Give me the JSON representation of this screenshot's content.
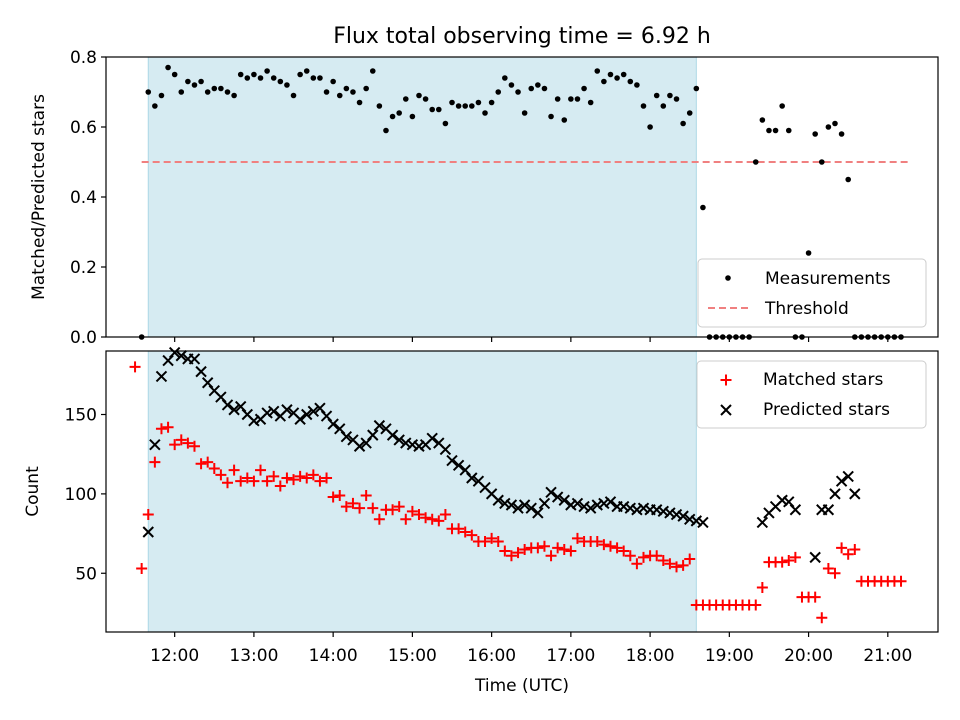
{
  "title": "Flux total observing time = 6.92 h",
  "chart_data": [
    {
      "type": "scatter",
      "ylabel": "Matched/Predicted stars",
      "xlabel": "",
      "xlim": [
        "11:08",
        "21:38"
      ],
      "ylim": [
        0,
        0.8
      ],
      "yticks": [
        "0.0",
        "0.2",
        "0.4",
        "0.6",
        "0.8"
      ],
      "grid": false,
      "legend_position": "bottom-right",
      "shaded_span": [
        "11:40",
        "18:35"
      ],
      "threshold": {
        "name": "Threshold",
        "value": 0.5,
        "x_range": [
          "11:35",
          "21:15"
        ],
        "color": "#f08080"
      },
      "series": [
        {
          "name": "Measurements",
          "color": "#000000",
          "x": [
            "11:35",
            "11:40",
            "11:45",
            "11:50",
            "11:55",
            "12:00",
            "12:05",
            "12:10",
            "12:15",
            "12:20",
            "12:25",
            "12:30",
            "12:35",
            "12:40",
            "12:45",
            "12:50",
            "12:55",
            "13:00",
            "13:05",
            "13:10",
            "13:15",
            "13:20",
            "13:25",
            "13:30",
            "13:35",
            "13:40",
            "13:45",
            "13:50",
            "13:55",
            "14:00",
            "14:05",
            "14:10",
            "14:15",
            "14:20",
            "14:25",
            "14:30",
            "14:35",
            "14:40",
            "14:45",
            "14:50",
            "14:55",
            "15:00",
            "15:05",
            "15:10",
            "15:15",
            "15:20",
            "15:25",
            "15:30",
            "15:35",
            "15:40",
            "15:45",
            "15:50",
            "15:55",
            "16:00",
            "16:05",
            "16:10",
            "16:15",
            "16:20",
            "16:25",
            "16:30",
            "16:35",
            "16:40",
            "16:45",
            "16:50",
            "16:55",
            "17:00",
            "17:05",
            "17:10",
            "17:15",
            "17:20",
            "17:25",
            "17:30",
            "17:35",
            "17:40",
            "17:45",
            "17:50",
            "17:55",
            "18:00",
            "18:05",
            "18:10",
            "18:15",
            "18:20",
            "18:25",
            "18:30",
            "18:35",
            "18:40",
            "18:45",
            "18:50",
            "18:55",
            "19:00",
            "19:05",
            "19:10",
            "19:15",
            "19:20",
            "19:25",
            "19:30",
            "19:35",
            "19:40",
            "19:45",
            "19:50",
            "19:55",
            "20:00",
            "20:05",
            "20:10",
            "20:15",
            "20:20",
            "20:25",
            "20:30",
            "20:35",
            "20:40",
            "20:45",
            "20:50",
            "20:55",
            "21:00",
            "21:05",
            "21:10"
          ],
          "y": [
            0.0,
            0.7,
            0.66,
            0.69,
            0.77,
            0.75,
            0.7,
            0.73,
            0.72,
            0.73,
            0.7,
            0.71,
            0.71,
            0.7,
            0.69,
            0.75,
            0.74,
            0.75,
            0.74,
            0.76,
            0.74,
            0.73,
            0.72,
            0.69,
            0.75,
            0.76,
            0.74,
            0.74,
            0.7,
            0.73,
            0.69,
            0.71,
            0.7,
            0.67,
            0.71,
            0.76,
            0.66,
            0.59,
            0.63,
            0.64,
            0.68,
            0.63,
            0.69,
            0.68,
            0.65,
            0.65,
            0.61,
            0.67,
            0.66,
            0.66,
            0.66,
            0.67,
            0.64,
            0.67,
            0.7,
            0.74,
            0.72,
            0.7,
            0.64,
            0.71,
            0.72,
            0.71,
            0.63,
            0.68,
            0.62,
            0.68,
            0.68,
            0.71,
            0.67,
            0.76,
            0.73,
            0.75,
            0.74,
            0.75,
            0.73,
            0.72,
            0.66,
            0.6,
            0.69,
            0.66,
            0.69,
            0.68,
            0.61,
            0.64,
            0.71,
            0.37,
            0.0,
            0.0,
            0.0,
            0.0,
            0.0,
            0.0,
            0.0,
            0.5,
            0.62,
            0.59,
            0.59,
            0.66,
            0.59,
            0.0,
            0.0,
            0.24,
            0.58,
            0.5,
            0.6,
            0.61,
            0.58,
            0.45,
            0.0,
            0.0,
            0.0,
            0.0,
            0.0,
            0.0,
            0.0,
            0.0
          ]
        }
      ]
    },
    {
      "type": "scatter",
      "ylabel": "Count",
      "xlabel": "Time (UTC)",
      "xlim": [
        "11:08",
        "21:38"
      ],
      "ylim": [
        13,
        190
      ],
      "yticks": [
        "50",
        "100",
        "150"
      ],
      "xticks": [
        "12:00",
        "13:00",
        "14:00",
        "15:00",
        "16:00",
        "17:00",
        "18:00",
        "19:00",
        "20:00",
        "21:00"
      ],
      "grid": false,
      "legend_position": "top-right",
      "shaded_span": [
        "11:40",
        "18:35"
      ],
      "series": [
        {
          "name": "Matched stars",
          "color": "#ff0000",
          "marker": "+",
          "x": [
            "11:30",
            "11:35",
            "11:40",
            "11:45",
            "11:50",
            "11:55",
            "12:00",
            "12:05",
            "12:10",
            "12:15",
            "12:20",
            "12:25",
            "12:30",
            "12:35",
            "12:40",
            "12:45",
            "12:50",
            "12:55",
            "13:00",
            "13:05",
            "13:10",
            "13:15",
            "13:20",
            "13:25",
            "13:30",
            "13:35",
            "13:40",
            "13:45",
            "13:50",
            "13:55",
            "14:00",
            "14:05",
            "14:10",
            "14:15",
            "14:20",
            "14:25",
            "14:30",
            "14:35",
            "14:40",
            "14:45",
            "14:50",
            "14:55",
            "15:00",
            "15:05",
            "15:10",
            "15:15",
            "15:20",
            "15:25",
            "15:30",
            "15:35",
            "15:40",
            "15:45",
            "15:50",
            "15:55",
            "16:00",
            "16:05",
            "16:10",
            "16:15",
            "16:20",
            "16:25",
            "16:30",
            "16:35",
            "16:40",
            "16:45",
            "16:50",
            "16:55",
            "17:00",
            "17:05",
            "17:10",
            "17:15",
            "17:20",
            "17:25",
            "17:30",
            "17:35",
            "17:40",
            "17:45",
            "17:50",
            "17:55",
            "18:00",
            "18:05",
            "18:10",
            "18:15",
            "18:20",
            "18:25",
            "18:30",
            "18:35",
            "18:40",
            "18:45",
            "18:50",
            "18:55",
            "19:00",
            "19:05",
            "19:10",
            "19:15",
            "19:20",
            "19:25",
            "19:30",
            "19:35",
            "19:40",
            "19:45",
            "19:50",
            "19:55",
            "20:00",
            "20:05",
            "20:10",
            "20:15",
            "20:20",
            "20:25",
            "20:30",
            "20:35",
            "20:40",
            "20:45",
            "20:50",
            "20:55",
            "21:00",
            "21:05",
            "21:10"
          ],
          "y": [
            180,
            53,
            87,
            120,
            141,
            142,
            131,
            134,
            132,
            130,
            119,
            120,
            116,
            112,
            107,
            115,
            108,
            110,
            108,
            115,
            108,
            111,
            105,
            110,
            109,
            111,
            110,
            112,
            108,
            110,
            98,
            99,
            92,
            94,
            91,
            99,
            91,
            84,
            90,
            90,
            92,
            84,
            89,
            87,
            85,
            84,
            83,
            87,
            78,
            78,
            76,
            74,
            70,
            70,
            72,
            70,
            64,
            61,
            63,
            65,
            66,
            66,
            67,
            61,
            66,
            65,
            64,
            72,
            70,
            70,
            70,
            68,
            67,
            66,
            64,
            61,
            56,
            60,
            61,
            61,
            58,
            56,
            54,
            55,
            59,
            30,
            30,
            30,
            30,
            30,
            30,
            30,
            30,
            30,
            30,
            41,
            57,
            57,
            57,
            58,
            60,
            35,
            35,
            35,
            22,
            53,
            50,
            66,
            62,
            65,
            45,
            45,
            45,
            45,
            45,
            45,
            45
          ]
        },
        {
          "name": "Predicted stars",
          "color": "#000000",
          "marker": "x",
          "x": [
            "11:40",
            "11:45",
            "11:50",
            "11:55",
            "12:00",
            "12:05",
            "12:10",
            "12:15",
            "12:20",
            "12:25",
            "12:30",
            "12:35",
            "12:40",
            "12:45",
            "12:50",
            "12:55",
            "13:00",
            "13:05",
            "13:10",
            "13:15",
            "13:20",
            "13:25",
            "13:30",
            "13:35",
            "13:40",
            "13:45",
            "13:50",
            "13:55",
            "14:00",
            "14:05",
            "14:10",
            "14:15",
            "14:20",
            "14:25",
            "14:30",
            "14:35",
            "14:40",
            "14:45",
            "14:50",
            "14:55",
            "15:00",
            "15:05",
            "15:10",
            "15:15",
            "15:20",
            "15:25",
            "15:30",
            "15:35",
            "15:40",
            "15:45",
            "15:50",
            "15:55",
            "16:00",
            "16:05",
            "16:10",
            "16:15",
            "16:20",
            "16:25",
            "16:30",
            "16:35",
            "16:40",
            "16:45",
            "16:50",
            "16:55",
            "17:00",
            "17:05",
            "17:10",
            "17:15",
            "17:20",
            "17:25",
            "17:30",
            "17:35",
            "17:40",
            "17:45",
            "17:50",
            "17:55",
            "18:00",
            "18:05",
            "18:10",
            "18:15",
            "18:20",
            "18:25",
            "18:30",
            "18:35",
            "18:40",
            "19:25",
            "19:30",
            "19:35",
            "19:40",
            "19:45",
            "19:50",
            "20:05",
            "20:10",
            "20:15",
            "20:20",
            "20:25",
            "20:30",
            "20:35"
          ],
          "y": [
            76,
            131,
            174,
            184,
            189,
            187,
            185,
            185,
            177,
            170,
            165,
            161,
            156,
            153,
            155,
            150,
            146,
            147,
            151,
            152,
            149,
            153,
            151,
            147,
            150,
            152,
            154,
            149,
            144,
            141,
            136,
            134,
            130,
            132,
            137,
            143,
            141,
            137,
            134,
            132,
            131,
            130,
            131,
            135,
            132,
            128,
            121,
            118,
            115,
            110,
            108,
            104,
            100,
            96,
            94,
            93,
            91,
            93,
            91,
            88,
            94,
            101,
            98,
            96,
            93,
            94,
            92,
            91,
            93,
            94,
            95,
            92,
            92,
            91,
            90,
            91,
            90,
            90,
            89,
            88,
            87,
            86,
            84,
            83,
            82,
            82,
            88,
            92,
            96,
            95,
            90,
            60,
            90,
            90,
            100,
            108,
            111,
            100
          ]
        }
      ]
    }
  ]
}
